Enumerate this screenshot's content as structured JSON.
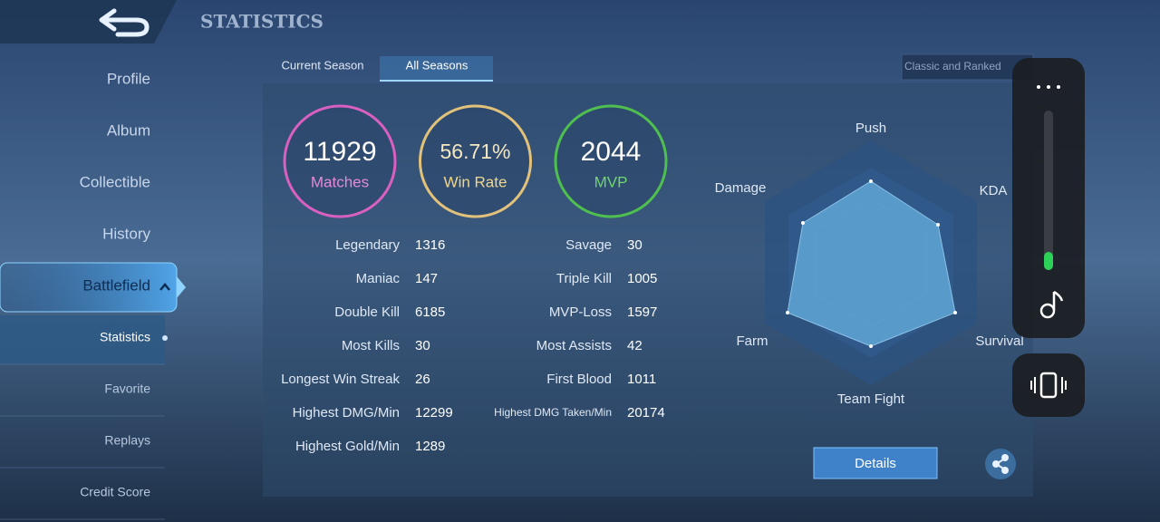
{
  "header": {
    "title": "STATISTICS"
  },
  "sidebar": {
    "items": [
      "Profile",
      "Album",
      "Collectible",
      "History",
      "Battlefield"
    ],
    "subitems": [
      "Statistics",
      "Favorite",
      "Replays",
      "Credit Score"
    ]
  },
  "tabs": [
    "Current Season",
    "All Seasons"
  ],
  "filter": "Classic and Ranked",
  "summary": [
    {
      "value": "11929",
      "label": "Matches"
    },
    {
      "value": "56.71%",
      "label": "Win Rate"
    },
    {
      "value": "2044",
      "label": "MVP"
    }
  ],
  "stats": {
    "left": [
      [
        "Legendary",
        "1316"
      ],
      [
        "Maniac",
        "147"
      ],
      [
        "Double Kill",
        "6185"
      ],
      [
        "Most Kills",
        "30"
      ],
      [
        "Longest Win Streak",
        "26"
      ],
      [
        "Highest DMG/Min",
        "12299"
      ],
      [
        "Highest Gold/Min",
        "1289"
      ]
    ],
    "right": [
      [
        "Savage",
        "30"
      ],
      [
        "Triple Kill",
        "1005"
      ],
      [
        "MVP-Loss",
        "1597"
      ],
      [
        "Most Assists",
        "42"
      ],
      [
        "First Blood",
        "1011"
      ],
      [
        "Highest DMG Taken/Min",
        "20174"
      ]
    ]
  },
  "radar": {
    "labels": [
      "Push",
      "KDA",
      "Survival",
      "Team Fight",
      "Farm",
      "Damage"
    ]
  },
  "details_button": "Details"
}
